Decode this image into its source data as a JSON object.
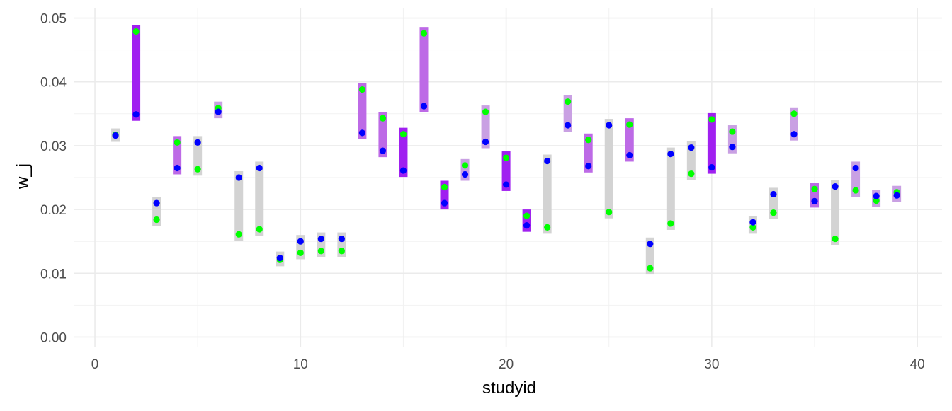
{
  "chart_data": {
    "type": "scatter",
    "title": "",
    "xlabel": "studyid",
    "ylabel": "w_j",
    "xlim": [
      -1,
      41.2
    ],
    "ylim": [
      -0.0015,
      0.0515
    ],
    "x_ticks": [
      0,
      10,
      20,
      30,
      40
    ],
    "x_tick_labels": [
      "0",
      "10",
      "20",
      "30",
      "40"
    ],
    "y_ticks": [
      0,
      0.01,
      0.02,
      0.03,
      0.04,
      0.05
    ],
    "y_tick_labels": [
      "0.00",
      "0.01",
      "0.02",
      "0.03",
      "0.04",
      "0.05"
    ],
    "grid": true,
    "legend": "none",
    "colors": {
      "point_blue": "#0000ff",
      "point_green": "#00ff00",
      "range_dark": "#a020f0",
      "range_mid": "#bd6ae6",
      "range_light": "#c9a0e3",
      "range_grey": "#d3d3d3",
      "grid": "#ebebeb",
      "tick_text": "#4d4d4d"
    },
    "studyid": [
      1,
      2,
      3,
      4,
      5,
      6,
      7,
      8,
      9,
      10,
      11,
      12,
      13,
      14,
      15,
      16,
      17,
      18,
      19,
      20,
      21,
      22,
      23,
      24,
      25,
      26,
      27,
      28,
      29,
      30,
      31,
      32,
      33,
      34,
      35,
      36,
      37,
      38,
      39
    ],
    "series": [
      {
        "color": "#0000ff",
        "values": [
          0.0316,
          0.0349,
          0.021,
          0.0265,
          0.0305,
          0.0353,
          0.025,
          0.0265,
          0.0124,
          0.015,
          0.0154,
          0.0154,
          0.032,
          0.0292,
          0.0261,
          0.0362,
          0.021,
          0.0255,
          0.0306,
          0.0239,
          0.0175,
          0.0276,
          0.0332,
          0.0268,
          0.0332,
          0.0285,
          0.0146,
          0.0287,
          0.0297,
          0.0266,
          0.0298,
          0.018,
          0.0224,
          0.0318,
          0.0213,
          0.0236,
          0.0265,
          0.0221,
          0.0222
        ]
      },
      {
        "color": "#00ff00",
        "values": [
          0.0317,
          0.0479,
          0.0184,
          0.0305,
          0.0263,
          0.0359,
          0.0161,
          0.0169,
          0.0121,
          0.0132,
          0.0135,
          0.0135,
          0.0388,
          0.0343,
          0.0318,
          0.0476,
          0.0235,
          0.0269,
          0.0353,
          0.0281,
          0.019,
          0.0172,
          0.0369,
          0.0309,
          0.0196,
          0.0333,
          0.0108,
          0.0178,
          0.0256,
          0.0341,
          0.0322,
          0.0172,
          0.0195,
          0.035,
          0.0232,
          0.0154,
          0.023,
          0.0214,
          0.0227
        ]
      }
    ],
    "ranges": [
      {
        "x": 1,
        "low": 0.0306,
        "high": 0.0327,
        "color": "#d3d3d3"
      },
      {
        "x": 2,
        "low": 0.0339,
        "high": 0.0489,
        "color": "#a020f0"
      },
      {
        "x": 3,
        "low": 0.0174,
        "high": 0.022,
        "color": "#d3d3d3"
      },
      {
        "x": 4,
        "low": 0.0255,
        "high": 0.0315,
        "color": "#bd6ae6"
      },
      {
        "x": 5,
        "low": 0.0253,
        "high": 0.0315,
        "color": "#d3d3d3"
      },
      {
        "x": 6,
        "low": 0.0343,
        "high": 0.0369,
        "color": "#c9a0e3"
      },
      {
        "x": 7,
        "low": 0.0151,
        "high": 0.026,
        "color": "#d3d3d3"
      },
      {
        "x": 8,
        "low": 0.0159,
        "high": 0.0275,
        "color": "#d3d3d3"
      },
      {
        "x": 9,
        "low": 0.0111,
        "high": 0.0134,
        "color": "#d3d3d3"
      },
      {
        "x": 10,
        "low": 0.0122,
        "high": 0.016,
        "color": "#d3d3d3"
      },
      {
        "x": 11,
        "low": 0.0125,
        "high": 0.0164,
        "color": "#d3d3d3"
      },
      {
        "x": 12,
        "low": 0.0125,
        "high": 0.0164,
        "color": "#d3d3d3"
      },
      {
        "x": 13,
        "low": 0.031,
        "high": 0.0398,
        "color": "#bd6ae6"
      },
      {
        "x": 14,
        "low": 0.0282,
        "high": 0.0353,
        "color": "#bd6ae6"
      },
      {
        "x": 15,
        "low": 0.0251,
        "high": 0.0328,
        "color": "#a020f0"
      },
      {
        "x": 16,
        "low": 0.0352,
        "high": 0.0486,
        "color": "#bd6ae6"
      },
      {
        "x": 17,
        "low": 0.02,
        "high": 0.0245,
        "color": "#a020f0"
      },
      {
        "x": 18,
        "low": 0.0245,
        "high": 0.0279,
        "color": "#c9a0e3"
      },
      {
        "x": 19,
        "low": 0.0296,
        "high": 0.0363,
        "color": "#c9a0e3"
      },
      {
        "x": 20,
        "low": 0.0229,
        "high": 0.0291,
        "color": "#a020f0"
      },
      {
        "x": 21,
        "low": 0.0165,
        "high": 0.02,
        "color": "#a020f0"
      },
      {
        "x": 22,
        "low": 0.0162,
        "high": 0.0286,
        "color": "#d3d3d3"
      },
      {
        "x": 23,
        "low": 0.0322,
        "high": 0.0379,
        "color": "#c9a0e3"
      },
      {
        "x": 24,
        "low": 0.0258,
        "high": 0.0319,
        "color": "#bd6ae6"
      },
      {
        "x": 25,
        "low": 0.0186,
        "high": 0.0342,
        "color": "#d3d3d3"
      },
      {
        "x": 26,
        "low": 0.0275,
        "high": 0.0343,
        "color": "#bd6ae6"
      },
      {
        "x": 27,
        "low": 0.0098,
        "high": 0.0156,
        "color": "#d3d3d3"
      },
      {
        "x": 28,
        "low": 0.0168,
        "high": 0.0297,
        "color": "#d3d3d3"
      },
      {
        "x": 29,
        "low": 0.0246,
        "high": 0.0307,
        "color": "#d3d3d3"
      },
      {
        "x": 30,
        "low": 0.0256,
        "high": 0.0351,
        "color": "#a020f0"
      },
      {
        "x": 31,
        "low": 0.0288,
        "high": 0.0332,
        "color": "#c9a0e3"
      },
      {
        "x": 32,
        "low": 0.0162,
        "high": 0.019,
        "color": "#d3d3d3"
      },
      {
        "x": 33,
        "low": 0.0185,
        "high": 0.0234,
        "color": "#d3d3d3"
      },
      {
        "x": 34,
        "low": 0.0308,
        "high": 0.036,
        "color": "#c9a0e3"
      },
      {
        "x": 35,
        "low": 0.0203,
        "high": 0.0242,
        "color": "#bd6ae6"
      },
      {
        "x": 36,
        "low": 0.0144,
        "high": 0.0246,
        "color": "#d3d3d3"
      },
      {
        "x": 37,
        "low": 0.022,
        "high": 0.0275,
        "color": "#c9a0e3"
      },
      {
        "x": 38,
        "low": 0.0204,
        "high": 0.0231,
        "color": "#c9a0e3"
      },
      {
        "x": 39,
        "low": 0.0212,
        "high": 0.0237,
        "color": "#c9a0e3"
      }
    ]
  }
}
